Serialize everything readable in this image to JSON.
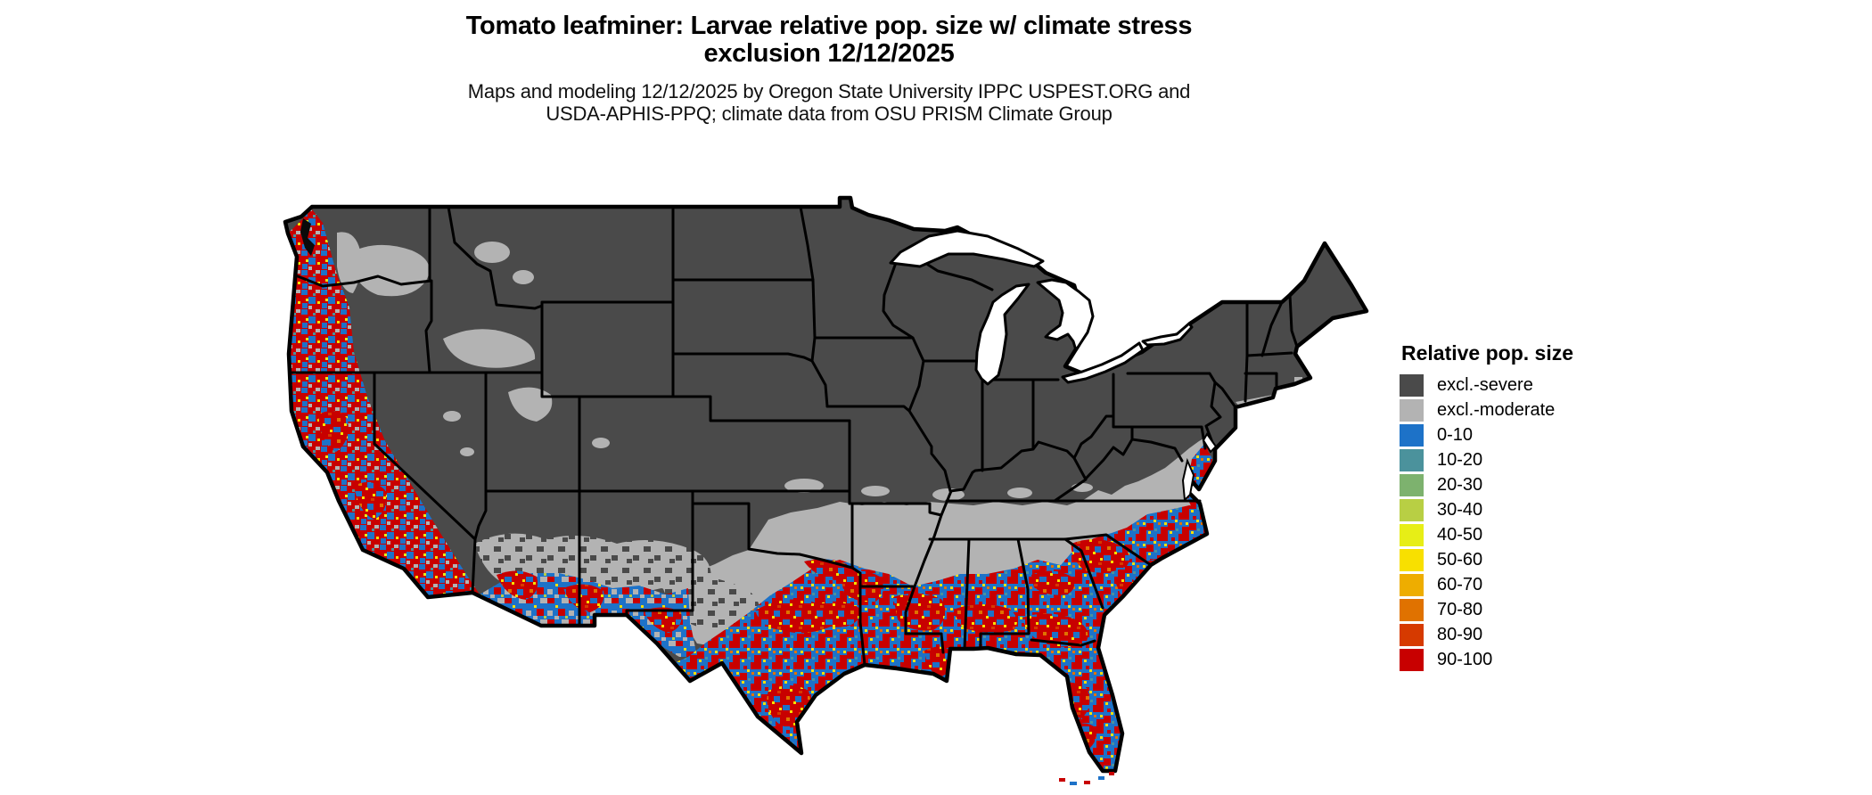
{
  "header": {
    "title_line1": "Tomato leafminer: Larvae relative pop. size w/ climate stress",
    "title_line2": "exclusion 12/12/2025",
    "subtitle_line1": "Maps and modeling 12/12/2025 by Oregon State University IPPC USPEST.ORG and",
    "subtitle_line2": "USDA-APHIS-PPQ; climate data from OSU PRISM Climate Group"
  },
  "legend": {
    "title": "Relative pop. size",
    "items": [
      {
        "label": "excl.-severe",
        "color": "#4a4a4a"
      },
      {
        "label": "excl.-moderate",
        "color": "#b3b3b3"
      },
      {
        "label": "0-10",
        "color": "#1d72c8"
      },
      {
        "label": "10-20",
        "color": "#4b929c"
      },
      {
        "label": "20-30",
        "color": "#7db26e"
      },
      {
        "label": "30-40",
        "color": "#b8cf44"
      },
      {
        "label": "40-50",
        "color": "#e7ee16"
      },
      {
        "label": "50-60",
        "color": "#f8e000"
      },
      {
        "label": "60-70",
        "color": "#eead00"
      },
      {
        "label": "70-80",
        "color": "#e07200"
      },
      {
        "label": "80-90",
        "color": "#d63a00"
      },
      {
        "label": "90-100",
        "color": "#c80000"
      }
    ]
  },
  "map": {
    "zones": {
      "north_interior": "excl.-severe",
      "south_central_band": "excl.-moderate",
      "gulf_south_and_west_coast": "0-100 speckled (blue/red/yellow)"
    },
    "water_color": "#ffffff",
    "border_color": "#000000"
  }
}
